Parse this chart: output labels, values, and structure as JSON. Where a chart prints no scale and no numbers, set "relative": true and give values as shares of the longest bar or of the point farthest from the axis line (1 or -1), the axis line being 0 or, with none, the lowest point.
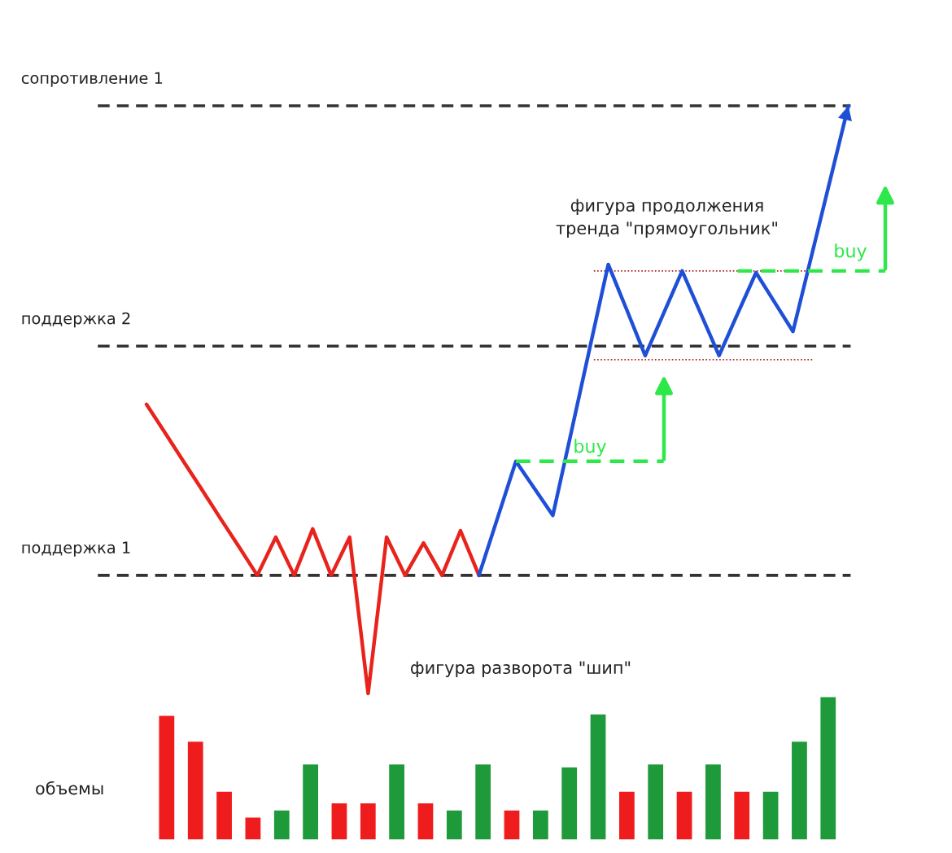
{
  "chart_data": [
    {
      "type": "line",
      "relative": true,
      "grid": false,
      "categories": [
        null,
        null,
        null,
        null,
        null,
        null,
        null,
        null,
        null,
        null,
        null,
        null,
        null,
        null,
        null,
        null,
        null,
        null,
        null,
        null,
        null,
        null,
        null,
        null,
        null,
        null,
        null,
        null,
        null,
        null,
        null,
        null,
        null,
        null,
        null,
        null,
        null,
        null,
        null,
        null,
        null
      ],
      "series": [
        {
          "color": "#e8231c",
          "values": [
            0.492,
            0.444,
            0.395,
            0.347,
            0.298,
            0.25,
            0.201,
            0.266,
            0.201,
            0.28,
            0.201,
            0.266,
            0,
            0.266,
            0.201,
            0.256,
            0.201,
            0.277,
            0.201,
            null,
            null,
            null,
            null,
            null,
            null,
            null,
            null,
            null,
            null,
            null,
            null,
            null,
            null,
            null,
            null,
            null,
            null,
            null,
            null,
            null,
            null
          ]
        },
        {
          "color": "#1f4fd6",
          "values": [
            null,
            null,
            null,
            null,
            null,
            null,
            null,
            null,
            null,
            null,
            null,
            null,
            null,
            null,
            null,
            null,
            null,
            null,
            0.201,
            0.298,
            0.395,
            0.349,
            0.303,
            0.445,
            0.588,
            0.73,
            0.653,
            0.575,
            0.647,
            0.719,
            0.647,
            0.575,
            0.646,
            0.716,
            0.666,
            0.616,
            0.744,
            0.872,
            1.0,
            null,
            null
          ]
        },
        {
          "color": "#2ee84a",
          "line_style": "dashed",
          "values": [
            null,
            null,
            null,
            null,
            null,
            null,
            null,
            null,
            null,
            null,
            null,
            null,
            null,
            null,
            null,
            null,
            null,
            null,
            null,
            null,
            0.395,
            0.395,
            0.395,
            0.395,
            0.395,
            0.395,
            0.395,
            0.395,
            0.395,
            null,
            null,
            null,
            null,
            null,
            null,
            null,
            null,
            null,
            null,
            null,
            null
          ]
        },
        {
          "color": "#2ee84a",
          "line_style": "dashed",
          "values": [
            null,
            null,
            null,
            null,
            null,
            null,
            null,
            null,
            null,
            null,
            null,
            null,
            null,
            null,
            null,
            null,
            null,
            null,
            null,
            null,
            null,
            null,
            null,
            null,
            null,
            null,
            null,
            null,
            null,
            null,
            null,
            null,
            0.719,
            0.719,
            0.719,
            0.719,
            0.719,
            0.719,
            0.719,
            0.719,
            0.719
          ]
        }
      ],
      "ref_lines": [
        {
          "axis": "y",
          "value": 1.0,
          "label": "сопротивление 1",
          "color": "#333333",
          "line_style": "dashed"
        },
        {
          "axis": "y",
          "value": 0.591,
          "label": "поддержка 2",
          "color": "#333333",
          "line_style": "dashed"
        },
        {
          "axis": "y",
          "value": 0.201,
          "label": "поддержка 1",
          "color": "#333333",
          "line_style": "dashed"
        },
        {
          "axis": "y",
          "value": 0.719,
          "color": "#b22222",
          "line_style": "dotted"
        },
        {
          "axis": "y",
          "value": 0.568,
          "color": "#b22222",
          "line_style": "dotted"
        }
      ],
      "annotations": [
        "фигура продолжения\nтренда \"прямоугольник\"",
        "фигура разворота \"шип\"",
        "buy",
        "buy"
      ]
    },
    {
      "type": "bar",
      "relative": true,
      "ylabel": "объемы",
      "categories": [
        null,
        null,
        null,
        null,
        null,
        null,
        null,
        null,
        null,
        null,
        null,
        null,
        null,
        null,
        null,
        null,
        null,
        null,
        null,
        null,
        null,
        null,
        null,
        null
      ],
      "values": [
        0.87,
        0.69,
        0.34,
        0.16,
        0.21,
        0.53,
        0.26,
        0.26,
        0.53,
        0.26,
        0.21,
        0.53,
        0.21,
        0.21,
        0.51,
        0.88,
        0.34,
        0.53,
        0.34,
        0.53,
        0.34,
        0.34,
        0.69,
        1.0
      ],
      "colors": [
        "#ee1c1c",
        "#ee1c1c",
        "#ee1c1c",
        "#ee1c1c",
        "#1e9a3a",
        "#1e9a3a",
        "#ee1c1c",
        "#ee1c1c",
        "#1e9a3a",
        "#ee1c1c",
        "#1e9a3a",
        "#1e9a3a",
        "#ee1c1c",
        "#1e9a3a",
        "#1e9a3a",
        "#1e9a3a",
        "#ee1c1c",
        "#1e9a3a",
        "#ee1c1c",
        "#1e9a3a",
        "#ee1c1c",
        "#1e9a3a",
        "#1e9a3a",
        "#1e9a3a"
      ]
    }
  ]
}
